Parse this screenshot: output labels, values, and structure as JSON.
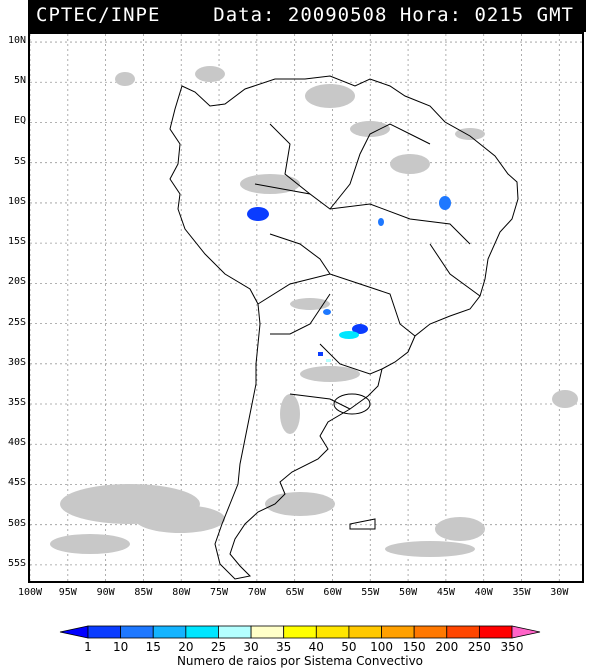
{
  "header": {
    "source": "CPTEC/INPE",
    "datetime": "Data: 20090508 Hora: 0215 GMT"
  },
  "map": {
    "lat_labels": [
      "10N",
      "5N",
      "EQ",
      "5S",
      "10S",
      "15S",
      "20S",
      "25S",
      "30S",
      "35S",
      "40S",
      "45S",
      "50S",
      "55S"
    ],
    "lon_labels": [
      "100W",
      "95W",
      "90W",
      "85W",
      "80W",
      "75W",
      "70W",
      "65W",
      "60W",
      "55W",
      "50W",
      "45W",
      "40W",
      "35W",
      "30W"
    ],
    "lat_range": [
      11,
      -57
    ],
    "lon_range": [
      -100,
      -27
    ]
  },
  "legend": {
    "title": "Numero de raios por Sistema Convectivo",
    "values": [
      "1",
      "10",
      "15",
      "20",
      "25",
      "30",
      "35",
      "40",
      "50",
      "100",
      "150",
      "200",
      "250",
      "350"
    ],
    "colors": [
      "#0000ff",
      "#0a3cff",
      "#1e78ff",
      "#14b4ff",
      "#00e6ff",
      "#b4ffff",
      "#ffffc8",
      "#ffff00",
      "#ffe600",
      "#ffc800",
      "#ffa000",
      "#ff7800",
      "#ff4600",
      "#ff0000",
      "#ff64c8"
    ]
  }
}
